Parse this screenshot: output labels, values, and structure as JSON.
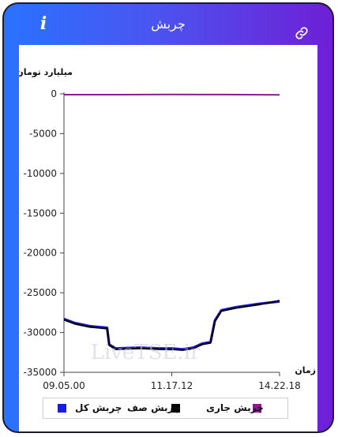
{
  "header": {
    "title": "چربش",
    "info_icon": "info-icon",
    "link_icon": "link-icon"
  },
  "colors": {
    "series_total": "#1a1ae6",
    "series_queue": "#000000",
    "series_current": "#8b1a8b"
  },
  "watermark": "LiveTSE.ir",
  "chart_data": {
    "type": "line",
    "ylabel": "میلیارد تومان",
    "xlabel": "زمان",
    "ylim": [
      -35000,
      0
    ],
    "yticks": [
      0,
      -5000,
      -10000,
      -15000,
      -20000,
      -25000,
      -30000,
      -35000
    ],
    "ytick_labels": [
      "0",
      "-5000",
      "-10000",
      "-15000",
      "-20000",
      "-25000",
      "-30000",
      "-35000"
    ],
    "xticks": [
      "09.05.00",
      "11.17.12",
      "14.22.18"
    ],
    "grid": false,
    "legend_position": "bottom",
    "series": [
      {
        "name": "چربش کل",
        "color_key": "series_total",
        "points": [
          [
            0,
            -28300
          ],
          [
            0.05,
            -28800
          ],
          [
            0.12,
            -29200
          ],
          [
            0.2,
            -29400
          ],
          [
            0.21,
            -31500
          ],
          [
            0.24,
            -32000
          ],
          [
            0.35,
            -31900
          ],
          [
            0.45,
            -32000
          ],
          [
            0.5,
            -32000
          ],
          [
            0.55,
            -32100
          ],
          [
            0.6,
            -31900
          ],
          [
            0.64,
            -31400
          ],
          [
            0.68,
            -31200
          ],
          [
            0.7,
            -28500
          ],
          [
            0.73,
            -27200
          ],
          [
            0.8,
            -26800
          ],
          [
            0.9,
            -26400
          ],
          [
            1.0,
            -26100
          ]
        ]
      },
      {
        "name": "چربش صف",
        "color_key": "series_queue",
        "points": [
          [
            0,
            -28400
          ],
          [
            0.05,
            -28900
          ],
          [
            0.12,
            -29300
          ],
          [
            0.2,
            -29500
          ],
          [
            0.21,
            -31600
          ],
          [
            0.24,
            -32100
          ],
          [
            0.35,
            -32000
          ],
          [
            0.45,
            -32100
          ],
          [
            0.5,
            -32100
          ],
          [
            0.55,
            -32200
          ],
          [
            0.6,
            -32000
          ],
          [
            0.64,
            -31500
          ],
          [
            0.68,
            -31300
          ],
          [
            0.7,
            -28600
          ],
          [
            0.73,
            -27300
          ],
          [
            0.8,
            -26900
          ],
          [
            0.9,
            -26500
          ],
          [
            1.0,
            -26000
          ]
        ]
      },
      {
        "name": "چربش جاری",
        "color_key": "series_current",
        "points": [
          [
            0,
            -100
          ],
          [
            0.25,
            -100
          ],
          [
            0.5,
            -80
          ],
          [
            0.75,
            -90
          ],
          [
            1.0,
            -120
          ]
        ]
      }
    ]
  }
}
